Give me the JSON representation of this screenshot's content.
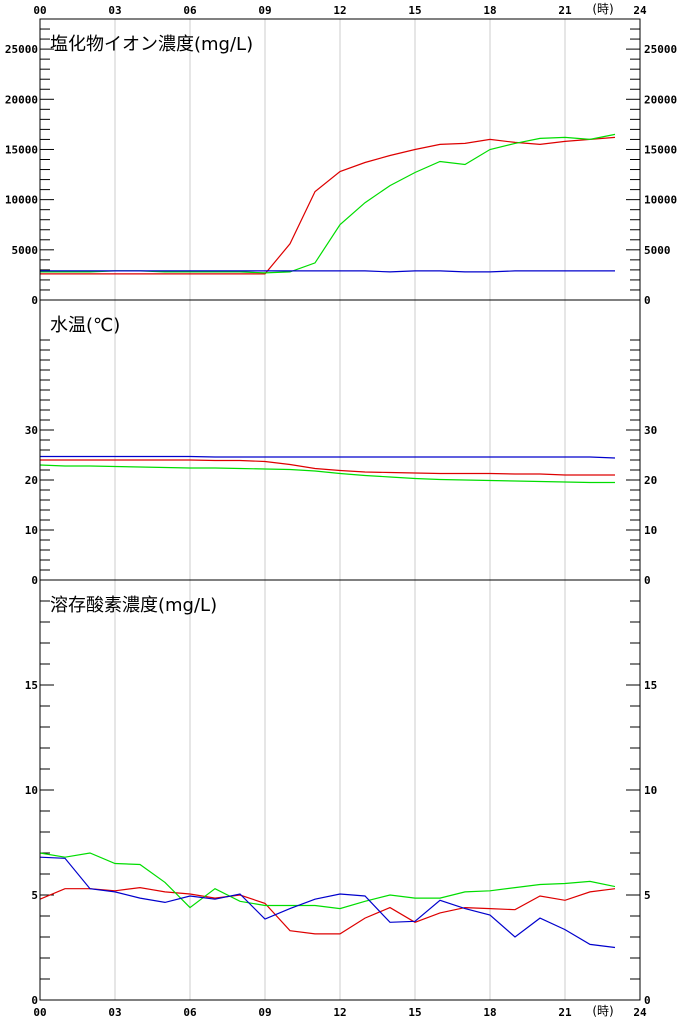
{
  "colors": {
    "red": "#dd0000",
    "green": "#00dd00",
    "blue": "#0000cc",
    "grid": "#cccccc",
    "axis": "#000000"
  },
  "chart_data": [
    {
      "type": "line",
      "title": "塩化物イオン濃度(mg/L)",
      "x_ticks": [
        "00",
        "03",
        "06",
        "09",
        "12",
        "15",
        "18",
        "21",
        "24"
      ],
      "x_unit": "(時)",
      "xlim": [
        0,
        24
      ],
      "ylim": [
        0,
        28000
      ],
      "y_ticks": [
        0,
        5000,
        10000,
        15000,
        20000,
        25000
      ],
      "y_tick_labels": [
        "0",
        "5000",
        "10000",
        "15000",
        "20000",
        "25000"
      ],
      "minor_step": 1000,
      "grid": "vertical",
      "series": [
        {
          "color": "red",
          "x": [
            0,
            1,
            2,
            3,
            4,
            5,
            6,
            7,
            8,
            9,
            10,
            11,
            12,
            13,
            14,
            15,
            16,
            17,
            18,
            19,
            20,
            21,
            22,
            23
          ],
          "y": [
            2600,
            2600,
            2600,
            2600,
            2600,
            2600,
            2600,
            2600,
            2600,
            2600,
            5600,
            10800,
            12800,
            13700,
            14400,
            15000,
            15500,
            15600,
            16000,
            15700,
            15500,
            15800,
            16000,
            16200
          ]
        },
        {
          "color": "green",
          "x": [
            0,
            1,
            2,
            3,
            4,
            5,
            6,
            7,
            8,
            9,
            10,
            11,
            12,
            13,
            14,
            15,
            16,
            17,
            18,
            19,
            20,
            21,
            22,
            23
          ],
          "y": [
            2800,
            2800,
            2800,
            2900,
            2900,
            2800,
            2800,
            2800,
            2800,
            2700,
            2800,
            3700,
            7500,
            9700,
            11400,
            12700,
            13800,
            13500,
            15000,
            15600,
            16100,
            16200,
            16000,
            16500
          ]
        },
        {
          "color": "blue",
          "x": [
            0,
            1,
            2,
            3,
            4,
            5,
            6,
            7,
            8,
            9,
            10,
            11,
            12,
            13,
            14,
            15,
            16,
            17,
            18,
            19,
            20,
            21,
            22,
            23
          ],
          "y": [
            2900,
            2900,
            2900,
            2900,
            2900,
            2900,
            2900,
            2900,
            2900,
            2900,
            2900,
            2900,
            2900,
            2900,
            2800,
            2900,
            2900,
            2800,
            2800,
            2900,
            2900,
            2900,
            2900,
            2900
          ]
        }
      ]
    },
    {
      "type": "line",
      "title": "水温(℃)",
      "xlim": [
        0,
        24
      ],
      "ylim": [
        0,
        56
      ],
      "y_ticks": [
        0,
        10,
        20,
        30
      ],
      "y_tick_labels": [
        "0",
        "10",
        "20",
        "30"
      ],
      "minor_step": 2,
      "minor_max": 48,
      "grid": "vertical",
      "series": [
        {
          "color": "red",
          "x": [
            0,
            1,
            2,
            3,
            4,
            5,
            6,
            7,
            8,
            9,
            10,
            11,
            12,
            13,
            14,
            15,
            16,
            17,
            18,
            19,
            20,
            21,
            22,
            23
          ],
          "y": [
            24.0,
            24.0,
            24.0,
            24.0,
            24.0,
            24.0,
            24.0,
            23.9,
            23.9,
            23.7,
            23.1,
            22.3,
            21.9,
            21.6,
            21.5,
            21.4,
            21.3,
            21.3,
            21.3,
            21.2,
            21.2,
            21.0,
            21.0,
            21.0
          ]
        },
        {
          "color": "green",
          "x": [
            0,
            1,
            2,
            3,
            4,
            5,
            6,
            7,
            8,
            9,
            10,
            11,
            12,
            13,
            14,
            15,
            16,
            17,
            18,
            19,
            20,
            21,
            22,
            23
          ],
          "y": [
            23.0,
            22.8,
            22.8,
            22.7,
            22.6,
            22.5,
            22.4,
            22.4,
            22.3,
            22.2,
            22.1,
            21.8,
            21.3,
            20.9,
            20.6,
            20.3,
            20.1,
            20.0,
            19.9,
            19.8,
            19.7,
            19.6,
            19.5,
            19.5
          ]
        },
        {
          "color": "blue",
          "x": [
            0,
            1,
            2,
            3,
            4,
            5,
            6,
            7,
            8,
            9,
            10,
            11,
            12,
            13,
            14,
            15,
            16,
            17,
            18,
            19,
            20,
            21,
            22,
            23
          ],
          "y": [
            24.7,
            24.7,
            24.7,
            24.7,
            24.7,
            24.7,
            24.7,
            24.6,
            24.6,
            24.6,
            24.6,
            24.6,
            24.6,
            24.6,
            24.6,
            24.6,
            24.6,
            24.6,
            24.6,
            24.6,
            24.6,
            24.6,
            24.6,
            24.4
          ]
        }
      ]
    },
    {
      "type": "line",
      "title": "溶存酸素濃度(mg/L)",
      "x_ticks": [
        "00",
        "03",
        "06",
        "09",
        "12",
        "15",
        "18",
        "21",
        "24"
      ],
      "x_unit": "(時)",
      "xlim": [
        0,
        24
      ],
      "ylim": [
        0,
        20
      ],
      "y_ticks": [
        0,
        5,
        10,
        15
      ],
      "y_tick_labels": [
        "0",
        "5",
        "10",
        "15"
      ],
      "minor_step": 1,
      "minor_max": 19,
      "grid": "vertical",
      "series": [
        {
          "color": "red",
          "x": [
            0,
            1,
            2,
            3,
            4,
            5,
            6,
            7,
            8,
            9,
            10,
            11,
            12,
            13,
            14,
            15,
            16,
            17,
            18,
            19,
            20,
            21,
            22,
            23
          ],
          "y": [
            4.8,
            5.3,
            5.3,
            5.2,
            5.35,
            5.15,
            5.05,
            4.85,
            5.0,
            4.6,
            3.3,
            3.15,
            3.15,
            3.9,
            4.4,
            3.7,
            4.15,
            4.4,
            4.35,
            4.3,
            4.95,
            4.75,
            5.15,
            5.3
          ]
        },
        {
          "color": "green",
          "x": [
            0,
            1,
            2,
            3,
            4,
            5,
            6,
            7,
            8,
            9,
            10,
            11,
            12,
            13,
            14,
            15,
            16,
            17,
            18,
            19,
            20,
            21,
            22,
            23
          ],
          "y": [
            7.0,
            6.8,
            7.0,
            6.5,
            6.45,
            5.6,
            4.4,
            5.3,
            4.7,
            4.5,
            4.5,
            4.5,
            4.35,
            4.7,
            5.0,
            4.85,
            4.85,
            5.15,
            5.2,
            5.35,
            5.5,
            5.55,
            5.65,
            5.4
          ]
        },
        {
          "color": "blue",
          "x": [
            0,
            1,
            2,
            3,
            4,
            5,
            6,
            7,
            8,
            9,
            10,
            11,
            12,
            13,
            14,
            15,
            16,
            17,
            18,
            19,
            20,
            21,
            22,
            23
          ],
          "y": [
            6.8,
            6.75,
            5.3,
            5.15,
            4.85,
            4.65,
            4.95,
            4.8,
            5.05,
            3.85,
            4.35,
            4.8,
            5.05,
            4.95,
            3.7,
            3.75,
            4.75,
            4.35,
            4.05,
            3.0,
            3.9,
            3.35,
            2.65,
            2.5
          ]
        }
      ]
    }
  ]
}
